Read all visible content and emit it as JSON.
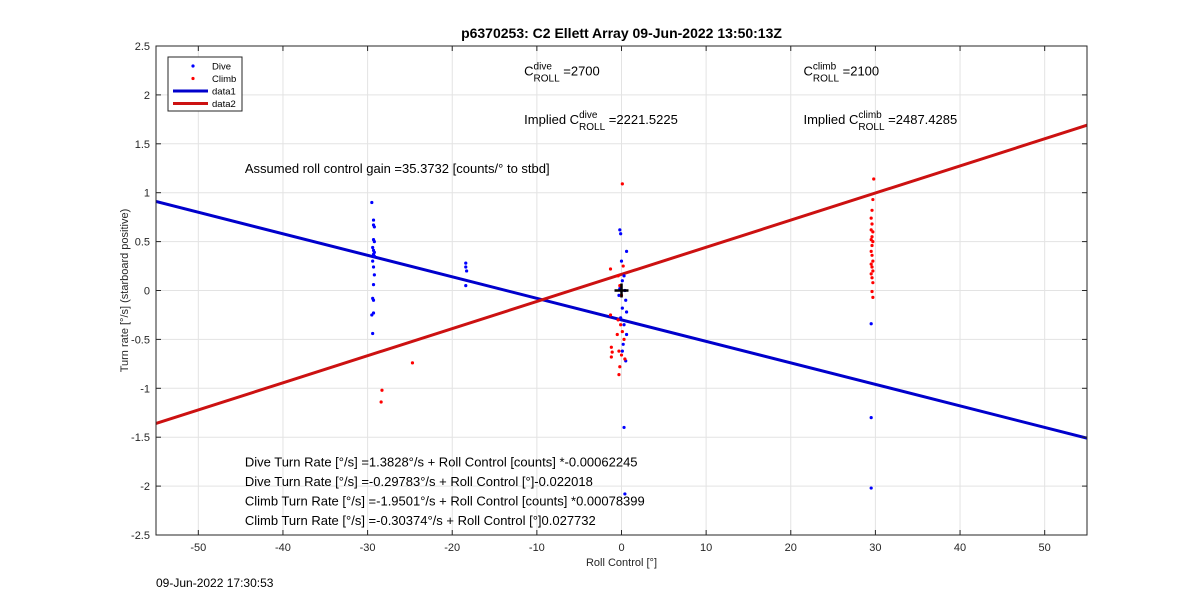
{
  "chart_data": {
    "type": "scatter",
    "title": "p6370253: C2 Ellett Array 09-Jun-2022 13:50:13Z",
    "xlabel": "Roll Control [°]",
    "ylabel": "Turn rate [°/s] (starboard positive)",
    "xlim": [
      -55,
      55
    ],
    "ylim": [
      -2.5,
      2.5
    ],
    "xticks": [
      -50,
      -40,
      -30,
      -20,
      -10,
      0,
      10,
      20,
      30,
      40,
      50
    ],
    "yticks": [
      -2.5,
      -2,
      -1.5,
      -1,
      -0.5,
      0,
      0.5,
      1,
      1.5,
      2,
      2.5
    ],
    "grid": true,
    "legend_position": "top-left",
    "series": [
      {
        "name": "Dive",
        "kind": "points",
        "color": "#0000ff",
        "points": [
          [
            -29.5,
            0.9
          ],
          [
            -29.3,
            0.72
          ],
          [
            -29.3,
            0.67
          ],
          [
            -29.2,
            0.65
          ],
          [
            -29.3,
            0.52
          ],
          [
            -29.2,
            0.5
          ],
          [
            -29.4,
            0.44
          ],
          [
            -29.3,
            0.41
          ],
          [
            -29.2,
            0.39
          ],
          [
            -29.3,
            0.37
          ],
          [
            -29.2,
            0.35
          ],
          [
            -29.4,
            0.3
          ],
          [
            -29.3,
            0.24
          ],
          [
            -29.2,
            0.16
          ],
          [
            -29.3,
            0.06
          ],
          [
            -29.4,
            -0.08
          ],
          [
            -29.3,
            -0.1
          ],
          [
            -29.3,
            -0.23
          ],
          [
            -29.5,
            -0.25
          ],
          [
            -29.4,
            -0.44
          ],
          [
            -18.4,
            0.28
          ],
          [
            -18.4,
            0.24
          ],
          [
            -18.3,
            0.2
          ],
          [
            -18.4,
            0.05
          ],
          [
            -0.2,
            0.62
          ],
          [
            -0.1,
            0.58
          ],
          [
            0.6,
            0.4
          ],
          [
            0.0,
            0.3
          ],
          [
            0.3,
            0.15
          ],
          [
            0.1,
            0.1
          ],
          [
            -0.2,
            0.02
          ],
          [
            0.4,
            0.0
          ],
          [
            -0.3,
            -0.05
          ],
          [
            0.5,
            -0.1
          ],
          [
            0.1,
            -0.18
          ],
          [
            0.6,
            -0.22
          ],
          [
            -0.1,
            -0.28
          ],
          [
            0.3,
            -0.35
          ],
          [
            0.6,
            -0.45
          ],
          [
            0.2,
            -0.55
          ],
          [
            0.1,
            -0.62
          ],
          [
            0.5,
            -0.72
          ],
          [
            0.3,
            -1.4
          ],
          [
            0.4,
            -2.08
          ],
          [
            29.5,
            -0.34
          ],
          [
            29.5,
            -1.3
          ],
          [
            29.5,
            -2.02
          ]
        ]
      },
      {
        "name": "Climb",
        "kind": "points",
        "color": "#ff0000",
        "points": [
          [
            -28.3,
            -1.02
          ],
          [
            -28.4,
            -1.14
          ],
          [
            -24.7,
            -0.74
          ],
          [
            0.1,
            1.09
          ],
          [
            -1.3,
            0.22
          ],
          [
            -0.4,
            0.15
          ],
          [
            0.2,
            0.25
          ],
          [
            -0.2,
            0.05
          ],
          [
            0.0,
            -0.05
          ],
          [
            -1.3,
            -0.25
          ],
          [
            -0.4,
            -0.3
          ],
          [
            -0.1,
            -0.35
          ],
          [
            0.1,
            -0.42
          ],
          [
            -0.5,
            -0.45
          ],
          [
            0.3,
            -0.5
          ],
          [
            -1.2,
            -0.58
          ],
          [
            -1.1,
            -0.63
          ],
          [
            -1.2,
            -0.68
          ],
          [
            -0.3,
            -0.62
          ],
          [
            0.0,
            -0.66
          ],
          [
            0.4,
            -0.7
          ],
          [
            -0.2,
            -0.78
          ],
          [
            -0.3,
            -0.86
          ],
          [
            29.8,
            1.14
          ],
          [
            29.7,
            0.93
          ],
          [
            29.6,
            0.82
          ],
          [
            29.5,
            0.74
          ],
          [
            29.6,
            0.68
          ],
          [
            29.5,
            0.62
          ],
          [
            29.7,
            0.6
          ],
          [
            29.6,
            0.55
          ],
          [
            29.5,
            0.52
          ],
          [
            29.7,
            0.5
          ],
          [
            29.6,
            0.46
          ],
          [
            29.5,
            0.4
          ],
          [
            29.6,
            0.36
          ],
          [
            29.7,
            0.3
          ],
          [
            29.5,
            0.27
          ],
          [
            29.6,
            0.24
          ],
          [
            29.7,
            0.2
          ],
          [
            29.5,
            0.17
          ],
          [
            29.6,
            0.13
          ],
          [
            29.7,
            0.08
          ],
          [
            29.6,
            -0.01
          ],
          [
            29.7,
            -0.07
          ]
        ]
      },
      {
        "name": "data1",
        "kind": "line",
        "color": "#0000cc",
        "points": [
          [
            -55,
            0.91
          ],
          [
            55,
            -1.51
          ]
        ]
      },
      {
        "name": "data2",
        "kind": "line",
        "color": "#cc1111",
        "points": [
          [
            -55,
            -1.36
          ],
          [
            55,
            1.69
          ]
        ]
      }
    ],
    "origin_marker": [
      0,
      0
    ],
    "annotations": [
      {
        "text_pre": "C",
        "sup": "dive",
        "sub": "ROLL",
        "text_post": " =2700",
        "x": -11.5,
        "y": 2.2
      },
      {
        "text_pre": "C",
        "sup": "climb",
        "sub": "ROLL",
        "text_post": " =2100",
        "x": 21.5,
        "y": 2.2
      },
      {
        "text_pre": "Implied C",
        "sup": "dive",
        "sub": "ROLL",
        "text_post": " =2221.5225",
        "x": -11.5,
        "y": 1.7
      },
      {
        "text_pre": "Implied C",
        "sup": "climb",
        "sub": "ROLL",
        "text_post": " =2487.4285",
        "x": 21.5,
        "y": 1.7
      },
      {
        "text": "Assumed roll control gain =35.3732 [counts/° to stbd]",
        "x": -44.5,
        "y": 1.2
      },
      {
        "text": "Dive Turn Rate [°/s] =1.3828°/s + Roll Control [counts] *-0.00062245",
        "x": -44.5,
        "y": -1.8
      },
      {
        "text": "Dive Turn Rate [°/s] =-0.29783°/s + Roll Control [°]-0.022018",
        "x": -44.5,
        "y": -2.0
      },
      {
        "text": "Climb Turn Rate [°/s] =-1.9501°/s + Roll Control [counts] *0.00078399",
        "x": -44.5,
        "y": -2.2
      },
      {
        "text": "Climb Turn Rate [°/s] =-0.30374°/s + Roll Control [°]0.027732",
        "x": -44.5,
        "y": -2.4
      }
    ]
  },
  "footer": {
    "timestamp": "09-Jun-2022 17:30:53"
  }
}
